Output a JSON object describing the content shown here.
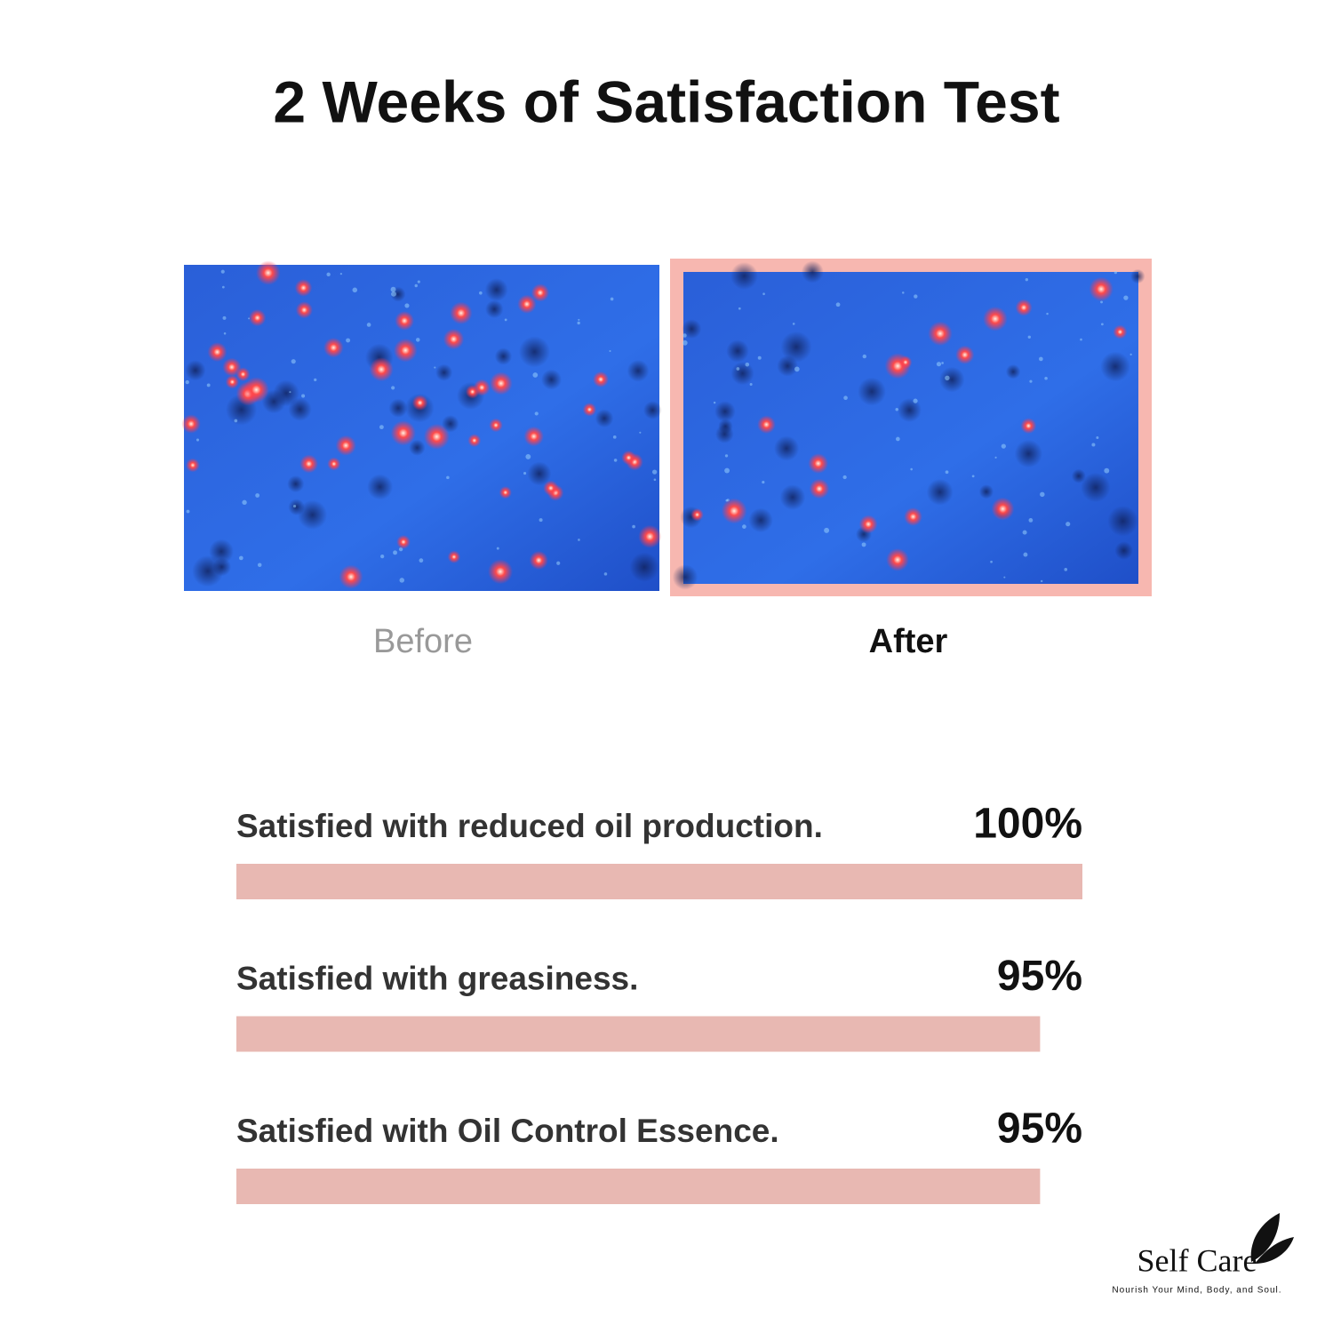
{
  "title": "2 Weeks of Satisfaction Test",
  "images": [
    {
      "label": "Before"
    },
    {
      "label": "After"
    }
  ],
  "chart_data": {
    "type": "bar",
    "categories": [
      "Satisfied with reduced oil production.",
      "Satisfied with greasiness.",
      "Satisfied with Oil Control Essence."
    ],
    "values": [
      100,
      95,
      95
    ],
    "value_labels": [
      "100%",
      "95%",
      "95%"
    ],
    "xlim": [
      0,
      100
    ],
    "color": "#e8b8b2"
  },
  "brand": {
    "name": "Self Care",
    "tagline": "Nourish Your Mind, Body, and Soul."
  }
}
